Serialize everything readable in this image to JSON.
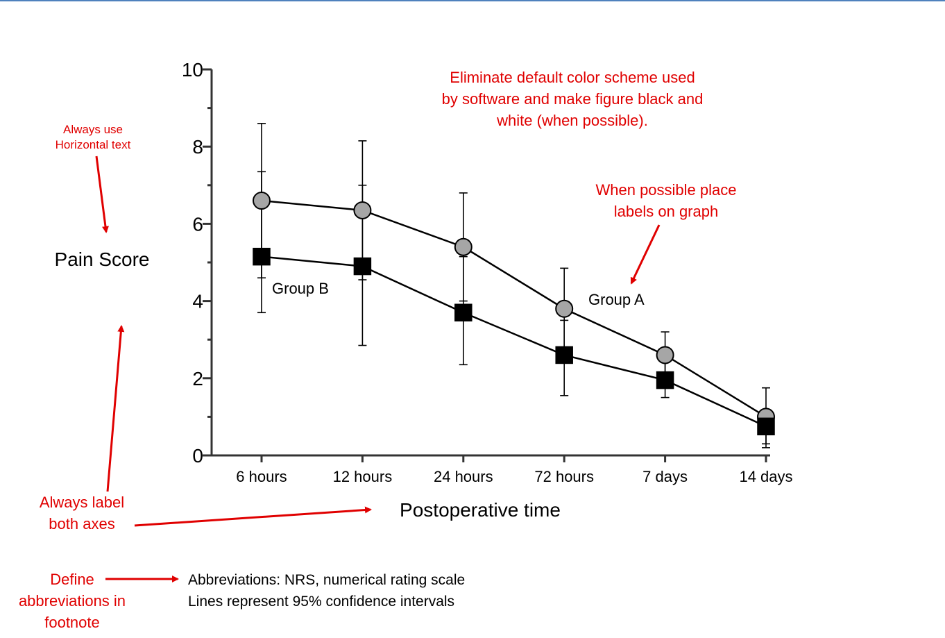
{
  "chart_data": {
    "type": "line",
    "categories": [
      "6 hours",
      "12 hours",
      "24 hours",
      "72 hours",
      "7 days",
      "14 days"
    ],
    "xlabel": "Postoperative time",
    "ylabel": "Pain Score",
    "ylim": [
      0,
      10
    ],
    "y_ticks": [
      "0",
      "2",
      "4",
      "6",
      "8",
      "10"
    ],
    "grid": false,
    "series": [
      {
        "name": "Group A",
        "marker": "circle",
        "fill": "#a6a6a6",
        "values": [
          6.6,
          6.35,
          5.4,
          3.8,
          2.6,
          1.0
        ],
        "ci_upper": [
          8.6,
          8.15,
          6.8,
          4.85,
          3.2,
          1.75
        ],
        "ci_lower": [
          4.6,
          4.55,
          4.0,
          2.8,
          2.0,
          0.3
        ]
      },
      {
        "name": "Group B",
        "marker": "square",
        "fill": "#000000",
        "values": [
          5.15,
          4.9,
          3.7,
          2.6,
          1.95,
          0.75
        ],
        "ci_upper": [
          7.35,
          7.0,
          5.15,
          3.5,
          2.45,
          1.1
        ],
        "ci_lower": [
          3.7,
          2.85,
          2.35,
          1.55,
          1.5,
          0.2
        ]
      }
    ]
  },
  "annotations": {
    "color_note": [
      "Eliminate default color scheme used",
      "by software and make figure black and",
      "white (when possible)."
    ],
    "labels_note": [
      "When possible place",
      "labels on graph"
    ],
    "horizontal_note": [
      "Always use",
      "Horizontal text"
    ],
    "axes_note": [
      "Always label",
      "both axes"
    ],
    "footnote_note": [
      "Define",
      "abbreviations in",
      "footnote"
    ]
  },
  "footnote": {
    "line1": "Abbreviations: NRS, numerical rating scale",
    "line2": "Lines represent 95% confidence intervals"
  },
  "colors": {
    "annotation": "#e00000",
    "top_rule": "#4f81bd"
  }
}
